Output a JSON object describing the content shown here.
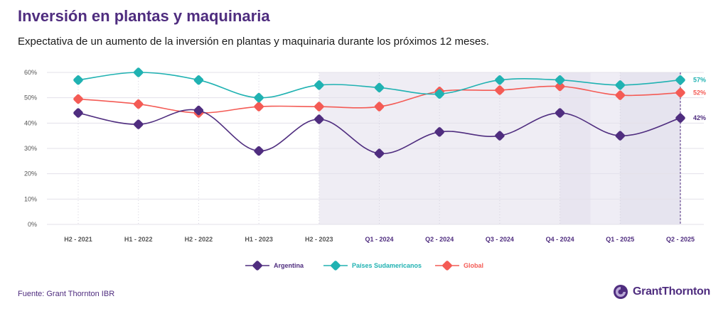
{
  "header": {
    "title": "Inversión en plantas y maquinaria",
    "subtitle": "Expectativa de un aumento de la inversión en plantas y maquinaria durante los próximos 12 meses."
  },
  "footer": {
    "source": "Fuente: Grant Thornton IBR",
    "brand": "GrantThornton"
  },
  "colors": {
    "argentina": "#4f2d7f",
    "paises": "#20b2b2",
    "global": "#f45b55",
    "shade": "#efedf4",
    "shade_dark": "#e2dfec",
    "axis_text": "#555555"
  },
  "chart_data": {
    "type": "line",
    "categories": [
      "H2 - 2021",
      "H1 - 2022",
      "H2 - 2022",
      "H1 - 2023",
      "H2 - 2023",
      "Q1 - 2024",
      "Q2 - 2024",
      "Q3 - 2024",
      "Q4 - 2024",
      "Q1 - 2025",
      "Q2 - 2025"
    ],
    "yticks": [
      "0%",
      "10%",
      "20%",
      "30%",
      "40%",
      "50%",
      "60%"
    ],
    "ylim": [
      0,
      60
    ],
    "grid": true,
    "series": [
      {
        "name": "Argentina",
        "key": "argentina",
        "values": [
          44,
          39.5,
          45,
          29,
          41.5,
          28,
          36.5,
          35,
          44,
          35,
          42
        ],
        "end_label": "42%"
      },
      {
        "name": "Países Sudamericanos",
        "key": "paises",
        "values": [
          57,
          60,
          57,
          50,
          55,
          54,
          51.5,
          57,
          57,
          55,
          57
        ],
        "end_label": "57%"
      },
      {
        "name": "Global",
        "key": "global",
        "values": [
          49.5,
          47.5,
          44,
          46.5,
          46.5,
          46.5,
          52.5,
          53,
          54.5,
          51,
          52
        ],
        "end_label": "52%"
      }
    ],
    "legend_position": "bottom"
  }
}
